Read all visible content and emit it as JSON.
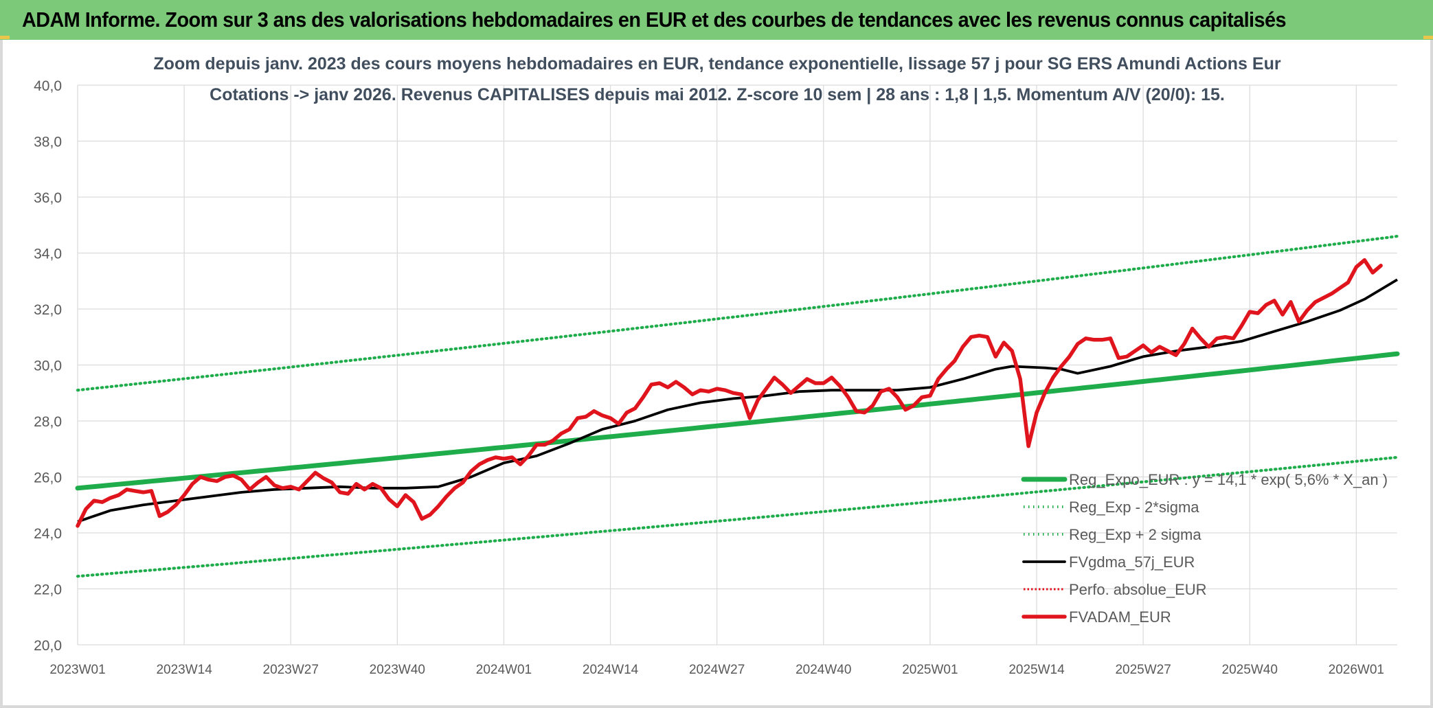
{
  "header": {
    "title": "ADAM Informe. Zoom sur 3 ans des valorisations hebdomadaires en EUR et des courbes de tendances avec les revenus connus capitalisés"
  },
  "chart_data": {
    "type": "line",
    "title_line1": "Zoom depuis janv. 2023 des cours moyens hebdomadaires en EUR, tendance exponentielle, lissage 57 j pour SG ERS Amundi Actions Eur",
    "title_line2": "Cotations -> janv 2026. Revenus CAPITALISES depuis mai 2012. Z-score 10 sem | 28 ans : 1,8 | 1,5. Momentum A/V (20/0): 15.",
    "xlabel": "",
    "ylabel": "",
    "ylim": [
      20.0,
      40.0
    ],
    "y_ticks": [
      "20,0",
      "22,0",
      "24,0",
      "26,0",
      "28,0",
      "30,0",
      "32,0",
      "34,0",
      "36,0",
      "38,0",
      "40,0"
    ],
    "x_ticks": [
      "2023W01",
      "2023W14",
      "2023W27",
      "2023W40",
      "2024W01",
      "2024W14",
      "2024W27",
      "2024W40",
      "2025W01",
      "2025W14",
      "2025W27",
      "2025W40",
      "2026W01"
    ],
    "x_tick_weeks": [
      0,
      13,
      26,
      39,
      52,
      65,
      78,
      91,
      104,
      117,
      130,
      143,
      156
    ],
    "x_range_weeks": [
      0,
      161
    ],
    "grid": true,
    "legend_position": "bottom-right",
    "series": [
      {
        "name": "Reg_Expo_EUR : y = 14,1 * exp( 5,6% *  X_an )",
        "style": "solid-thick",
        "color": "#1fac4b",
        "start": 25.6,
        "end": 30.4
      },
      {
        "name": "Reg_Exp - 2*sigma",
        "style": "dotted",
        "color": "#1fac4b",
        "start": 22.45,
        "end": 26.7
      },
      {
        "name": "Reg_Exp + 2 sigma",
        "style": "dotted",
        "color": "#1fac4b",
        "start": 29.1,
        "end": 34.6
      },
      {
        "name": "FVgdma_57j_EUR",
        "style": "solid",
        "color": "#000000",
        "points": [
          [
            0,
            24.4
          ],
          [
            4,
            24.8
          ],
          [
            8,
            25.0
          ],
          [
            12,
            25.15
          ],
          [
            16,
            25.3
          ],
          [
            20,
            25.45
          ],
          [
            24,
            25.55
          ],
          [
            28,
            25.6
          ],
          [
            32,
            25.65
          ],
          [
            36,
            25.6
          ],
          [
            40,
            25.6
          ],
          [
            44,
            25.65
          ],
          [
            48,
            26.0
          ],
          [
            52,
            26.5
          ],
          [
            56,
            26.75
          ],
          [
            60,
            27.2
          ],
          [
            64,
            27.7
          ],
          [
            68,
            28.0
          ],
          [
            72,
            28.4
          ],
          [
            76,
            28.65
          ],
          [
            80,
            28.8
          ],
          [
            84,
            28.9
          ],
          [
            88,
            29.05
          ],
          [
            92,
            29.1
          ],
          [
            96,
            29.1
          ],
          [
            100,
            29.1
          ],
          [
            104,
            29.2
          ],
          [
            108,
            29.5
          ],
          [
            112,
            29.85
          ],
          [
            114,
            29.95
          ],
          [
            118,
            29.9
          ],
          [
            120,
            29.85
          ],
          [
            122,
            29.7
          ],
          [
            126,
            29.95
          ],
          [
            130,
            30.3
          ],
          [
            134,
            30.5
          ],
          [
            138,
            30.65
          ],
          [
            142,
            30.85
          ],
          [
            146,
            31.2
          ],
          [
            150,
            31.55
          ],
          [
            154,
            31.95
          ],
          [
            157,
            32.35
          ],
          [
            161,
            33.05
          ]
        ]
      },
      {
        "name": "Perfo. absolue_EUR",
        "style": "dotted",
        "color": "#e0141c"
      },
      {
        "name": "FVADAM_EUR",
        "style": "solid-thick",
        "color": "#e0141c",
        "points": [
          [
            0,
            24.25
          ],
          [
            1,
            24.85
          ],
          [
            2,
            25.15
          ],
          [
            3,
            25.1
          ],
          [
            4,
            25.25
          ],
          [
            5,
            25.35
          ],
          [
            6,
            25.55
          ],
          [
            7,
            25.5
          ],
          [
            8,
            25.45
          ],
          [
            9,
            25.5
          ],
          [
            10,
            24.6
          ],
          [
            11,
            24.75
          ],
          [
            12,
            25.0
          ],
          [
            13,
            25.35
          ],
          [
            14,
            25.75
          ],
          [
            15,
            26.0
          ],
          [
            16,
            25.9
          ],
          [
            17,
            25.85
          ],
          [
            18,
            26.0
          ],
          [
            19,
            26.05
          ],
          [
            20,
            25.9
          ],
          [
            21,
            25.55
          ],
          [
            22,
            25.8
          ],
          [
            23,
            26.0
          ],
          [
            24,
            25.7
          ],
          [
            25,
            25.6
          ],
          [
            26,
            25.65
          ],
          [
            27,
            25.55
          ],
          [
            28,
            25.85
          ],
          [
            29,
            26.15
          ],
          [
            30,
            25.95
          ],
          [
            31,
            25.8
          ],
          [
            32,
            25.45
          ],
          [
            33,
            25.4
          ],
          [
            34,
            25.75
          ],
          [
            35,
            25.55
          ],
          [
            36,
            25.75
          ],
          [
            37,
            25.6
          ],
          [
            38,
            25.2
          ],
          [
            39,
            24.95
          ],
          [
            40,
            25.35
          ],
          [
            41,
            25.1
          ],
          [
            42,
            24.5
          ],
          [
            43,
            24.65
          ],
          [
            44,
            24.95
          ],
          [
            45,
            25.3
          ],
          [
            46,
            25.6
          ],
          [
            47,
            25.8
          ],
          [
            48,
            26.2
          ],
          [
            49,
            26.45
          ],
          [
            50,
            26.6
          ],
          [
            51,
            26.7
          ],
          [
            52,
            26.65
          ],
          [
            53,
            26.7
          ],
          [
            54,
            26.45
          ],
          [
            55,
            26.75
          ],
          [
            56,
            27.15
          ],
          [
            57,
            27.15
          ],
          [
            58,
            27.3
          ],
          [
            59,
            27.55
          ],
          [
            60,
            27.7
          ],
          [
            61,
            28.1
          ],
          [
            62,
            28.15
          ],
          [
            63,
            28.35
          ],
          [
            64,
            28.2
          ],
          [
            65,
            28.1
          ],
          [
            66,
            27.9
          ],
          [
            67,
            28.3
          ],
          [
            68,
            28.45
          ],
          [
            69,
            28.85
          ],
          [
            70,
            29.3
          ],
          [
            71,
            29.35
          ],
          [
            72,
            29.2
          ],
          [
            73,
            29.4
          ],
          [
            74,
            29.2
          ],
          [
            75,
            28.95
          ],
          [
            76,
            29.1
          ],
          [
            77,
            29.05
          ],
          [
            78,
            29.15
          ],
          [
            79,
            29.1
          ],
          [
            80,
            29.0
          ],
          [
            81,
            28.95
          ],
          [
            82,
            28.1
          ],
          [
            83,
            28.75
          ],
          [
            84,
            29.15
          ],
          [
            85,
            29.55
          ],
          [
            86,
            29.3
          ],
          [
            87,
            29.0
          ],
          [
            88,
            29.25
          ],
          [
            89,
            29.5
          ],
          [
            90,
            29.35
          ],
          [
            91,
            29.35
          ],
          [
            92,
            29.55
          ],
          [
            93,
            29.25
          ],
          [
            94,
            28.85
          ],
          [
            95,
            28.35
          ],
          [
            96,
            28.3
          ],
          [
            97,
            28.55
          ],
          [
            98,
            29.05
          ],
          [
            99,
            29.15
          ],
          [
            100,
            28.85
          ],
          [
            101,
            28.4
          ],
          [
            102,
            28.55
          ],
          [
            103,
            28.85
          ],
          [
            104,
            28.9
          ],
          [
            105,
            29.5
          ],
          [
            106,
            29.85
          ],
          [
            107,
            30.15
          ],
          [
            108,
            30.65
          ],
          [
            109,
            31.0
          ],
          [
            110,
            31.05
          ],
          [
            111,
            31.0
          ],
          [
            112,
            30.3
          ],
          [
            113,
            30.8
          ],
          [
            114,
            30.5
          ],
          [
            115,
            29.5
          ],
          [
            116,
            27.1
          ],
          [
            117,
            28.3
          ],
          [
            118,
            29.0
          ],
          [
            119,
            29.55
          ],
          [
            120,
            29.95
          ],
          [
            121,
            30.3
          ],
          [
            122,
            30.75
          ],
          [
            123,
            30.95
          ],
          [
            124,
            30.9
          ],
          [
            125,
            30.9
          ],
          [
            126,
            30.95
          ],
          [
            127,
            30.25
          ],
          [
            128,
            30.3
          ],
          [
            129,
            30.5
          ],
          [
            130,
            30.7
          ],
          [
            131,
            30.45
          ],
          [
            132,
            30.65
          ],
          [
            133,
            30.5
          ],
          [
            134,
            30.35
          ],
          [
            135,
            30.75
          ],
          [
            136,
            31.3
          ],
          [
            137,
            30.95
          ],
          [
            138,
            30.65
          ],
          [
            139,
            30.95
          ],
          [
            140,
            31.0
          ],
          [
            141,
            30.95
          ],
          [
            142,
            31.4
          ],
          [
            143,
            31.9
          ],
          [
            144,
            31.85
          ],
          [
            145,
            32.15
          ],
          [
            146,
            32.3
          ],
          [
            147,
            31.8
          ],
          [
            148,
            32.25
          ],
          [
            149,
            31.55
          ],
          [
            150,
            31.95
          ],
          [
            151,
            32.25
          ],
          [
            152,
            32.4
          ],
          [
            153,
            32.55
          ],
          [
            154,
            32.75
          ],
          [
            155,
            32.95
          ],
          [
            156,
            33.5
          ],
          [
            157,
            33.75
          ],
          [
            158,
            33.3
          ],
          [
            159,
            33.55
          ]
        ]
      }
    ]
  }
}
